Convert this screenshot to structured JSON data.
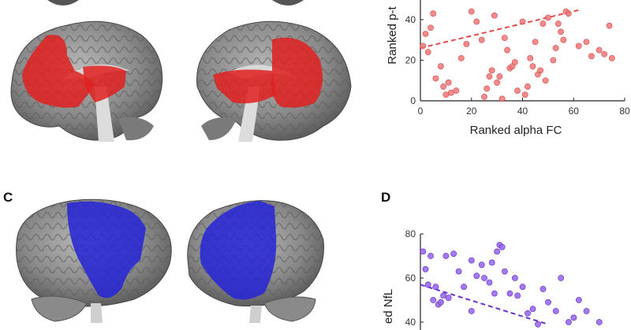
{
  "panels": {
    "c_label": "C",
    "d_label": "D"
  },
  "colors": {
    "red_highlight": "#e02020",
    "blue_highlight": "#2424d8",
    "red_points": "#f07878",
    "purple_points": "#9a6af0"
  },
  "chart_data": [
    {
      "id": "B",
      "type": "scatter",
      "xlabel": "Ranked alpha FC",
      "ylabel": "Ranked p-t",
      "xlim": [
        0,
        80
      ],
      "ylim": [
        0,
        80
      ],
      "xticks": [
        "0",
        "20",
        "40",
        "60",
        "80"
      ],
      "yticks": [
        "0",
        "20",
        "40"
      ],
      "fit": {
        "x1": 0,
        "y1": 26,
        "x2": 63,
        "y2": 45
      },
      "points": [
        [
          1,
          27
        ],
        [
          2,
          33
        ],
        [
          3,
          24
        ],
        [
          4,
          36
        ],
        [
          5,
          43
        ],
        [
          6,
          11
        ],
        [
          8,
          17
        ],
        [
          9,
          7
        ],
        [
          10,
          3
        ],
        [
          11,
          9
        ],
        [
          12,
          4
        ],
        [
          14,
          5
        ],
        [
          16,
          21
        ],
        [
          18,
          28
        ],
        [
          20,
          44
        ],
        [
          22,
          39
        ],
        [
          24,
          30
        ],
        [
          25,
          2
        ],
        [
          26,
          6
        ],
        [
          27,
          12
        ],
        [
          28,
          15
        ],
        [
          29,
          42
        ],
        [
          30,
          9
        ],
        [
          31,
          12
        ],
        [
          32,
          1
        ],
        [
          33,
          31
        ],
        [
          34,
          25
        ],
        [
          35,
          16
        ],
        [
          36,
          17
        ],
        [
          37,
          19
        ],
        [
          38,
          5
        ],
        [
          40,
          39
        ],
        [
          41,
          3
        ],
        [
          42,
          7
        ],
        [
          43,
          21
        ],
        [
          44,
          17
        ],
        [
          45,
          29
        ],
        [
          46,
          13
        ],
        [
          47,
          15
        ],
        [
          48,
          38
        ],
        [
          49,
          10
        ],
        [
          50,
          41
        ],
        [
          52,
          20
        ],
        [
          53,
          26
        ],
        [
          54,
          38
        ],
        [
          55,
          34
        ],
        [
          56,
          30
        ],
        [
          57,
          44
        ],
        [
          58,
          43
        ],
        [
          62,
          27
        ],
        [
          65,
          29
        ],
        [
          67,
          22
        ],
        [
          70,
          25
        ],
        [
          72,
          23
        ],
        [
          74,
          37
        ],
        [
          75,
          21
        ]
      ]
    },
    {
      "id": "D",
      "type": "scatter",
      "ylabel": "ed NfL",
      "ylim": [
        40,
        80
      ],
      "yticks": [
        "40",
        "60",
        "80"
      ],
      "fit": {
        "x1": 0,
        "y1": 57,
        "x2": 50,
        "y2": 39
      },
      "points": [
        [
          1,
          72
        ],
        [
          2,
          64
        ],
        [
          3,
          57
        ],
        [
          4,
          70
        ],
        [
          5,
          50
        ],
        [
          6,
          56
        ],
        [
          7,
          48
        ],
        [
          8,
          49
        ],
        [
          9,
          52
        ],
        [
          10,
          70
        ],
        [
          11,
          51
        ],
        [
          13,
          71
        ],
        [
          15,
          63
        ],
        [
          17,
          56
        ],
        [
          20,
          68
        ],
        [
          22,
          61
        ],
        [
          24,
          66
        ],
        [
          25,
          60
        ],
        [
          27,
          58
        ],
        [
          28,
          67
        ],
        [
          30,
          72
        ],
        [
          31,
          75
        ],
        [
          32,
          74
        ],
        [
          33,
          63
        ],
        [
          35,
          53
        ],
        [
          37,
          60
        ],
        [
          38,
          52
        ],
        [
          40,
          56
        ],
        [
          42,
          44
        ],
        [
          44,
          46
        ],
        [
          46,
          39
        ],
        [
          48,
          55
        ],
        [
          50,
          49
        ],
        [
          53,
          45
        ],
        [
          55,
          60
        ],
        [
          58,
          40
        ],
        [
          60,
          42
        ],
        [
          62,
          50
        ],
        [
          65,
          45
        ],
        [
          70,
          40
        ],
        [
          20,
          45
        ],
        [
          29,
          53
        ]
      ]
    }
  ]
}
